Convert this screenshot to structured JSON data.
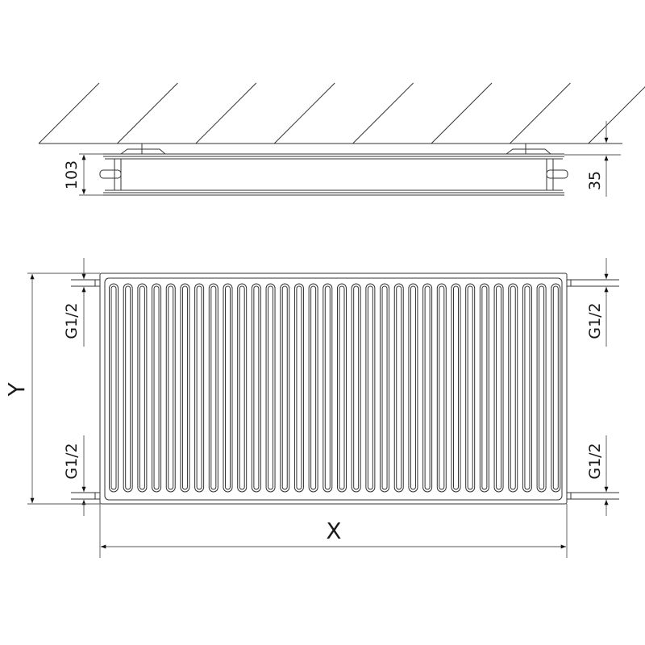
{
  "top_view": {
    "depth_label": "103",
    "wall_distance_label": "35"
  },
  "front_view": {
    "height_label": "Y",
    "width_label": "X",
    "connections": [
      "G1/2",
      "G1/2",
      "G1/2",
      "G1/2"
    ],
    "fin_count": 32
  }
}
